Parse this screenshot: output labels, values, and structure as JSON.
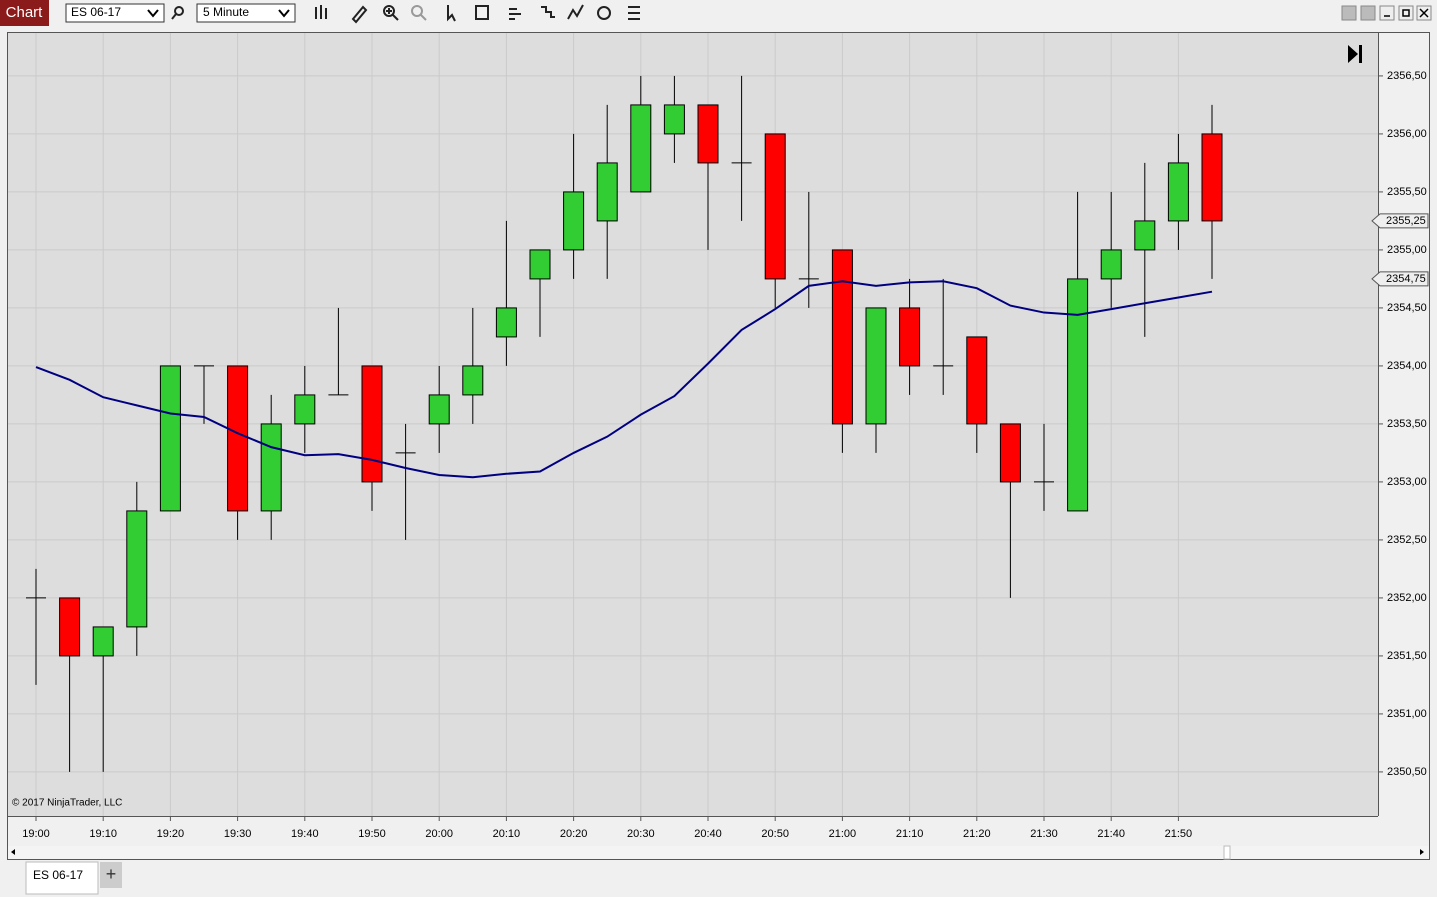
{
  "toolbar": {
    "title": "Chart",
    "instrument": "ES 06-17",
    "interval": "5 Minute"
  },
  "copyright": "© 2017 NinjaTrader, LLC",
  "tab": {
    "label": "ES 06-17",
    "add": "+"
  },
  "chart_data": {
    "type": "candlestick",
    "categories": [
      "19:00",
      null,
      "19:10",
      null,
      "19:20",
      null,
      "19:30",
      null,
      "19:40",
      null,
      "19:50",
      null,
      "20:00",
      null,
      "20:10",
      null,
      "20:20",
      null,
      "20:30",
      null,
      "20:40",
      null,
      "20:50",
      null,
      "21:00",
      null,
      "21:10",
      null,
      "21:20",
      null,
      "21:30",
      null,
      "21:40",
      null,
      "21:50",
      null
    ],
    "open": [
      2352,
      2352,
      2351.5,
      2351.75,
      2352.75,
      2354,
      2354,
      2352.75,
      2353.5,
      2353.75,
      2354,
      2353.25,
      2353.5,
      2353.75,
      2354.25,
      2354.75,
      2355,
      2355.25,
      2355.5,
      2356,
      2356.25,
      2355.75,
      2356,
      2354.75,
      2355,
      2353.5,
      2354.5,
      2354,
      2354.25,
      2353.5,
      2353,
      2352.75,
      2354.75,
      2355,
      2355.25,
      2356
    ],
    "high": [
      2352.25,
      2352,
      2351.75,
      2353,
      2354,
      2354,
      2354,
      2353.75,
      2354,
      2354.5,
      2354,
      2353.5,
      2354,
      2354.5,
      2355.25,
      2355,
      2356,
      2356.25,
      2356.5,
      2356.5,
      2356.25,
      2356.5,
      2356,
      2355.5,
      2355,
      2354.5,
      2354.75,
      2354.75,
      2354.25,
      2353.5,
      2353.5,
      2355.5,
      2355.5,
      2355.75,
      2356,
      2356.25
    ],
    "low": [
      2351.25,
      2350.5,
      2350.5,
      2351.5,
      2352.75,
      2353.5,
      2352.5,
      2352.5,
      2353.25,
      2353.75,
      2352.75,
      2352.5,
      2353.25,
      2353.5,
      2354,
      2354.25,
      2354.75,
      2354.75,
      2355.5,
      2355.75,
      2355,
      2355.25,
      2354.5,
      2354.5,
      2353.25,
      2353.25,
      2353.75,
      2353.75,
      2353.25,
      2352,
      2352.75,
      2352.75,
      2354.5,
      2354.25,
      2355,
      2354.75
    ],
    "close": [
      2352,
      2351.5,
      2351.75,
      2352.75,
      2354,
      2354,
      2352.75,
      2353.5,
      2353.75,
      2353.75,
      2353,
      2353.25,
      2353.75,
      2354,
      2354.5,
      2355,
      2355.5,
      2355.75,
      2356.25,
      2356.25,
      2355.75,
      2355.75,
      2354.75,
      2354.75,
      2353.5,
      2354.5,
      2354,
      2354,
      2353.5,
      2353,
      2353,
      2354.75,
      2355,
      2355.25,
      2355.75,
      2355.25
    ],
    "up_color": "#32cd32",
    "down_color": "#ff0000",
    "doji_color": "#000000",
    "indicator": {
      "color": "#000080",
      "values": [
        2353.99,
        2353.88,
        2353.73,
        2353.66,
        2353.59,
        2353.56,
        2353.42,
        2353.3,
        2353.23,
        2353.24,
        2353.19,
        2353.12,
        2353.06,
        2353.04,
        2353.07,
        2353.09,
        2353.25,
        2353.39,
        2353.58,
        2353.74,
        2354.02,
        2354.31,
        2354.49,
        2354.69,
        2354.73,
        2354.69,
        2354.72,
        2354.73,
        2354.67,
        2354.52,
        2354.46,
        2354.44,
        2354.49,
        2354.54,
        2354.59,
        2354.64
      ]
    },
    "ylim": [
      2350.12,
      2356.87
    ],
    "yticks": [
      {
        "value": 2350.5,
        "label": "2350,50"
      },
      {
        "value": 2351,
        "label": "2351,00"
      },
      {
        "value": 2351.5,
        "label": "2351,50"
      },
      {
        "value": 2352,
        "label": "2352,00"
      },
      {
        "value": 2352.5,
        "label": "2352,50"
      },
      {
        "value": 2353,
        "label": "2353,00"
      },
      {
        "value": 2353.5,
        "label": "2353,50"
      },
      {
        "value": 2354,
        "label": "2354,00"
      },
      {
        "value": 2354.5,
        "label": "2354,50"
      },
      {
        "value": 2355,
        "label": "2355,00"
      },
      {
        "value": 2355.5,
        "label": "2355,50"
      },
      {
        "value": 2356,
        "label": "2356,00"
      },
      {
        "value": 2356.5,
        "label": "2356,50"
      }
    ],
    "price_markers": [
      {
        "value": 2355.25,
        "label": "2355,25"
      },
      {
        "value": 2354.75,
        "label": "2354,75"
      }
    ],
    "grid": true
  }
}
